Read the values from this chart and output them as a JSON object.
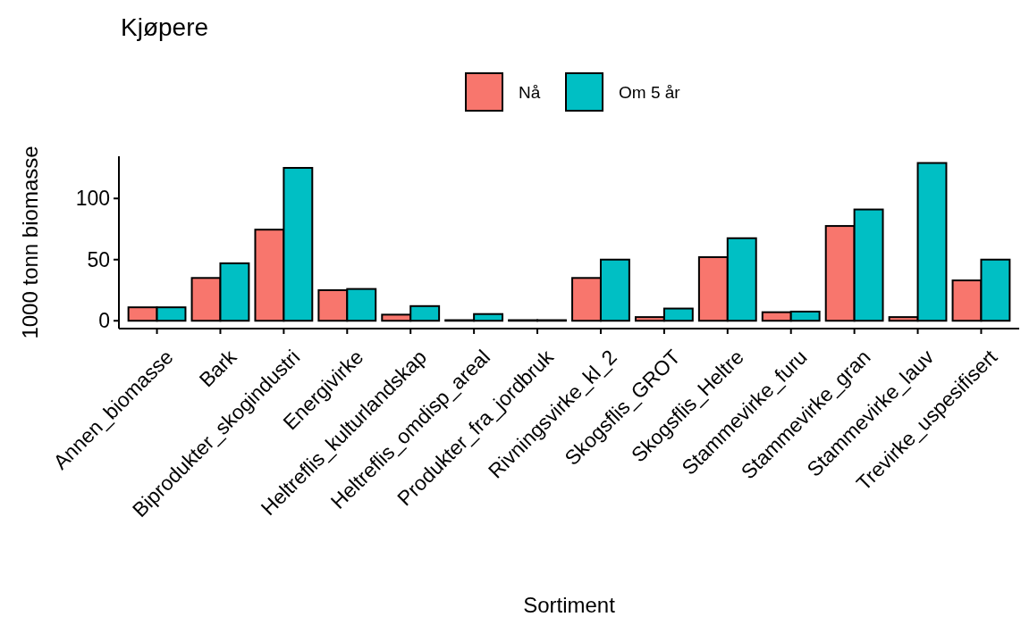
{
  "chart_data": {
    "type": "bar",
    "title": "Kjøpere",
    "xlabel": "Sortiment",
    "ylabel": "1000 tonn biomasse",
    "categories": [
      "Annen_biomasse",
      "Bark",
      "Biprodukter_skogindustri",
      "Energivirke",
      "Heltreflis_kulturlandskap",
      "Heltreflis_omdisp_areal",
      "Produkter_fra_jordbruk",
      "Rivningsvirke_kl_2",
      "Skogsflis_GROT",
      "Skogsflis_Heltre",
      "Stammevirke_furu",
      "Stammevirke_gran",
      "Stammevirke_lauv",
      "Trevirke_uspesifisert"
    ],
    "series": [
      {
        "name": "Nå",
        "color": "#f8766d",
        "values": [
          11,
          35,
          74.5,
          25,
          5,
          0.5,
          0.5,
          35,
          3,
          52,
          7,
          77.5,
          3,
          33
        ]
      },
      {
        "name": "Om 5 år",
        "color": "#00bfc4",
        "values": [
          11,
          47,
          125,
          26,
          12,
          5.5,
          0.5,
          50,
          10,
          67.5,
          7.5,
          91,
          129,
          50
        ]
      }
    ],
    "ylim": [
      -6.4,
      134.5
    ],
    "yticks": [
      0,
      50,
      100
    ],
    "grid": false,
    "legend": "top"
  }
}
